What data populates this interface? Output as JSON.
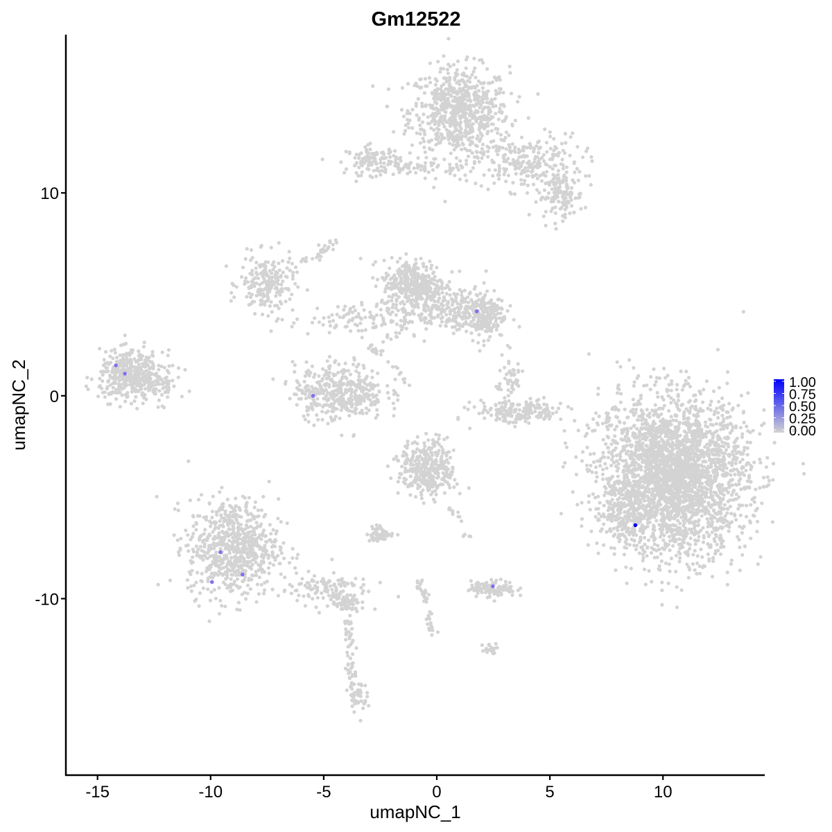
{
  "chart_data": {
    "type": "scatter",
    "title": "Gm12522",
    "xlabel": "umapNC_1",
    "ylabel": "umapNC_2",
    "xlim": [
      -16.4,
      14.5
    ],
    "ylim": [
      -18.7,
      17.8
    ],
    "xticks": [
      -15,
      -10,
      -5,
      0,
      5,
      10
    ],
    "yticks": [
      -10,
      0,
      10
    ],
    "xtick_labels": [
      "-15",
      "-10",
      "-5",
      "0",
      "5",
      "10"
    ],
    "ytick_labels": [
      "-10",
      "0",
      "10"
    ],
    "grid": false,
    "legend": {
      "placement": "right",
      "type": "colorbar",
      "range": [
        0,
        1
      ],
      "ticks": [
        "1.00",
        "0.75",
        "0.50",
        "0.25",
        "0.00"
      ],
      "low_color": "#d3d3d3",
      "high_color": "#0000ff"
    },
    "background_points_value": 0,
    "background_clusters": [
      {
        "center": [
          1.0,
          14.0
        ],
        "sd": [
          1.1,
          1.1
        ],
        "n": 700
      },
      {
        "center": [
          4.0,
          11.5
        ],
        "sd": [
          1.2,
          0.7
        ],
        "n": 250
      },
      {
        "center": [
          5.5,
          9.8
        ],
        "sd": [
          0.5,
          0.5
        ],
        "n": 120
      },
      {
        "center": [
          -2.8,
          11.6
        ],
        "sd": [
          0.6,
          0.35
        ],
        "n": 120
      },
      {
        "center": [
          -0.5,
          11.2
        ],
        "sd": [
          1.2,
          0.2
        ],
        "n": 60
      },
      {
        "center": [
          -7.5,
          5.5
        ],
        "sd": [
          0.6,
          0.7
        ],
        "n": 200
      },
      {
        "center": [
          -3.5,
          3.8
        ],
        "sd": [
          1.5,
          0.4
        ],
        "n": 110
      },
      {
        "center": [
          -1.0,
          5.5
        ],
        "sd": [
          0.7,
          0.6
        ],
        "n": 350
      },
      {
        "center": [
          0.5,
          4.2
        ],
        "sd": [
          1.0,
          0.5
        ],
        "n": 200
      },
      {
        "center": [
          2.0,
          4.0
        ],
        "sd": [
          0.5,
          0.6
        ],
        "n": 200
      },
      {
        "center": [
          -4.3,
          0.2
        ],
        "sd": [
          1.0,
          0.7
        ],
        "n": 400
      },
      {
        "center": [
          -13.5,
          1.0
        ],
        "sd": [
          0.7,
          0.6
        ],
        "n": 400
      },
      {
        "center": [
          -12.3,
          0.6
        ],
        "sd": [
          0.5,
          0.5
        ],
        "n": 60
      },
      {
        "center": [
          3.7,
          -0.8
        ],
        "sd": [
          1.0,
          0.3
        ],
        "n": 180
      },
      {
        "center": [
          3.2,
          0.8
        ],
        "sd": [
          0.3,
          0.6
        ],
        "n": 50
      },
      {
        "center": [
          10.5,
          -4.0
        ],
        "sd": [
          1.6,
          1.9
        ],
        "n": 2800
      },
      {
        "center": [
          8.3,
          -5.5
        ],
        "sd": [
          0.5,
          0.9
        ],
        "n": 150
      },
      {
        "center": [
          -0.4,
          -3.6
        ],
        "sd": [
          0.6,
          0.7
        ],
        "n": 350
      },
      {
        "center": [
          -9.0,
          -7.5
        ],
        "sd": [
          1.0,
          1.2
        ],
        "n": 700
      },
      {
        "center": [
          -5.0,
          -9.5
        ],
        "sd": [
          1.0,
          0.4
        ],
        "n": 120
      },
      {
        "center": [
          -4.0,
          -10.3
        ],
        "sd": [
          0.3,
          0.2
        ],
        "n": 50
      },
      {
        "center": [
          2.5,
          -9.5
        ],
        "sd": [
          0.5,
          0.2
        ],
        "n": 110
      },
      {
        "center": [
          -2.5,
          -6.8
        ],
        "sd": [
          0.3,
          0.2
        ],
        "n": 50
      },
      {
        "center": [
          2.4,
          -12.5
        ],
        "sd": [
          0.2,
          0.15
        ],
        "n": 20
      },
      {
        "center": [
          -3.5,
          -14.8
        ],
        "sd": [
          0.2,
          0.4
        ],
        "n": 40
      }
    ],
    "background_trails": [
      {
        "from": [
          -4.0,
          -10.3
        ],
        "to": [
          -3.7,
          -14.8
        ],
        "n": 60
      },
      {
        "from": [
          -0.8,
          -9.0
        ],
        "to": [
          -0.1,
          -11.8
        ],
        "n": 40
      },
      {
        "from": [
          0.6,
          -5.5
        ],
        "to": [
          1.5,
          -7.0
        ],
        "n": 15
      },
      {
        "from": [
          -6.0,
          6.5
        ],
        "to": [
          -4.3,
          7.6
        ],
        "n": 30
      },
      {
        "from": [
          -3.0,
          2.0
        ],
        "to": [
          -1.0,
          4.0
        ],
        "n": 25
      },
      {
        "from": [
          7.6,
          -1.5
        ],
        "to": [
          8.2,
          0.9
        ],
        "n": 25
      },
      {
        "from": [
          -3.0,
          2.5
        ],
        "to": [
          -1.2,
          0.7
        ],
        "n": 20
      }
    ],
    "expressing_points": [
      {
        "x": -14.19,
        "y": 1.5,
        "value": 0.55
      },
      {
        "x": -13.79,
        "y": 1.09,
        "value": 0.55
      },
      {
        "x": -5.47,
        "y": 0.0,
        "value": 0.55
      },
      {
        "x": 1.77,
        "y": 4.16,
        "value": 0.55
      },
      {
        "x": -9.57,
        "y": -7.71,
        "value": 0.55
      },
      {
        "x": -8.59,
        "y": -8.81,
        "value": 0.55
      },
      {
        "x": -9.94,
        "y": -9.18,
        "value": 0.55
      },
      {
        "x": 2.48,
        "y": -9.39,
        "value": 0.55
      },
      {
        "x": 8.78,
        "y": -6.38,
        "value": 1.0
      }
    ]
  }
}
